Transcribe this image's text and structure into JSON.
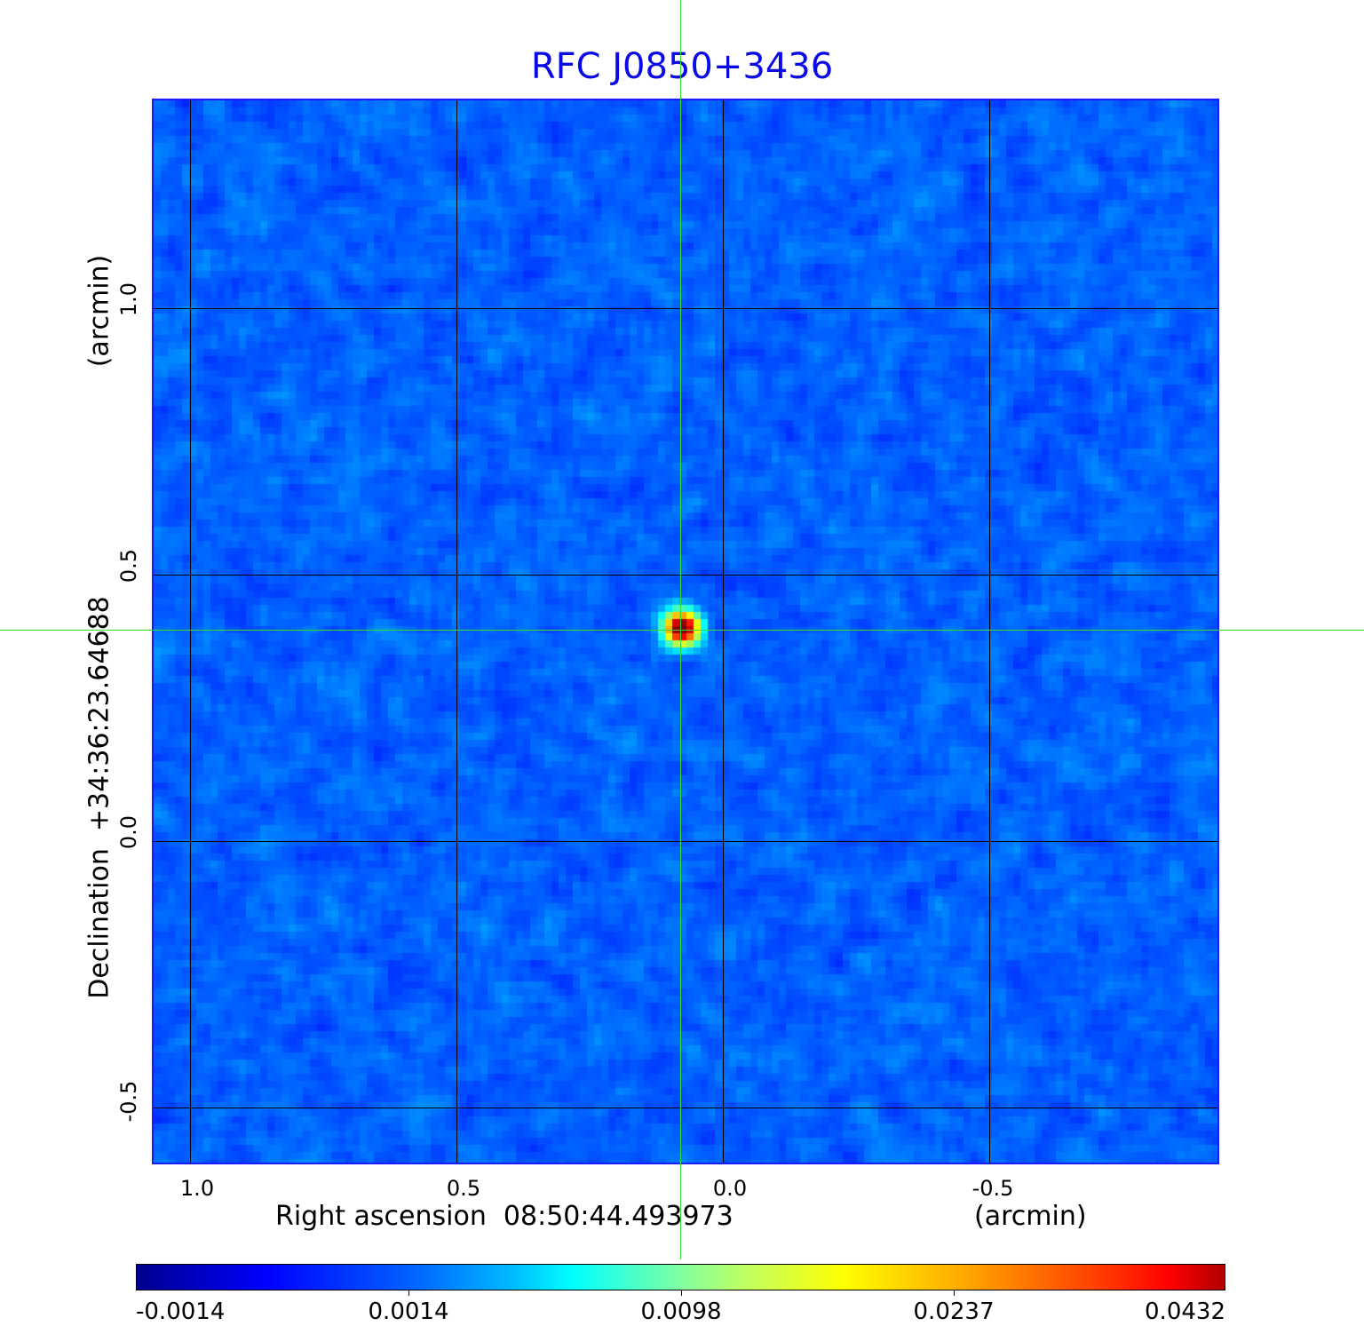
{
  "chart_data": {
    "type": "heatmap",
    "title": "RFC J0850+3436",
    "xlabel": "Right ascension  08:50:44.493973",
    "xunit": "(arcmin)",
    "ylabel": "Declination  +34:36:23.64688",
    "yunit": "(arcmin)",
    "x_ticks": [
      "1.0",
      "0.5",
      "0.0",
      "-0.5"
    ],
    "y_ticks": [
      "1.0",
      "0.5",
      "0.0",
      "-0.5"
    ],
    "xlim": [
      1.07,
      -0.93
    ],
    "ylim": [
      -0.61,
      1.39
    ],
    "x_reversed": true,
    "grid": true,
    "colormap": "jet",
    "colorbar_ticks": [
      "-0.0014",
      "0.0014",
      "0.0098",
      "0.0237",
      "0.0432"
    ],
    "colorbar_range": [
      -0.0014,
      0.0432
    ],
    "source": {
      "x": 0.08,
      "y": 0.4,
      "peak": 0.0432
    },
    "crosshair": {
      "x": 0.08,
      "y": 0.4
    },
    "background_level": 0.0
  },
  "colors": {
    "title": "#0a0ae6",
    "frame": "#1a1aff",
    "crosshair": "#33dd33"
  }
}
